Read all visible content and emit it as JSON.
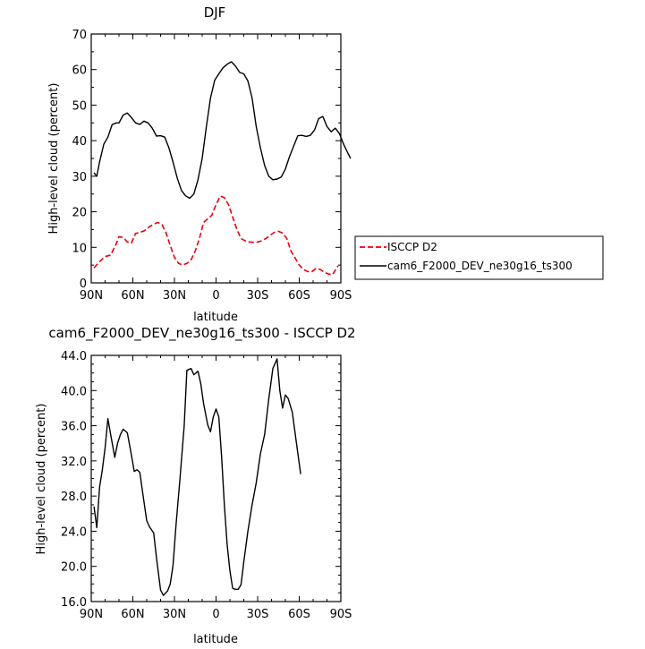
{
  "chart_data": [
    {
      "type": "line",
      "title": "DJF",
      "xlabel": "latitude",
      "ylabel": "High-level cloud (percent)",
      "xlim": [
        90,
        -90
      ],
      "ylim": [
        0,
        70
      ],
      "x_ticks": [
        {
          "value": 90,
          "label": "90N"
        },
        {
          "value": 60,
          "label": "60N"
        },
        {
          "value": 30,
          "label": "30N"
        },
        {
          "value": 0,
          "label": "0"
        },
        {
          "value": -30,
          "label": "30S"
        },
        {
          "value": -60,
          "label": "60S"
        },
        {
          "value": -90,
          "label": "90S"
        }
      ],
      "y_ticks": [
        {
          "value": 0,
          "label": "0"
        },
        {
          "value": 10,
          "label": "10"
        },
        {
          "value": 20,
          "label": "20"
        },
        {
          "value": 30,
          "label": "30"
        },
        {
          "value": 40,
          "label": "40"
        },
        {
          "value": 50,
          "label": "50"
        },
        {
          "value": 60,
          "label": "60"
        },
        {
          "value": 70,
          "label": "70"
        }
      ],
      "grid": false,
      "legend_position": "right",
      "series": [
        {
          "name": "ISCCP D2",
          "color": "#e8000b",
          "dash": "dashed",
          "points": [
            [
              88,
              4.2
            ],
            [
              84,
              6
            ],
            [
              80,
              7.4
            ],
            [
              76,
              7.8
            ],
            [
              72,
              11
            ],
            [
              70,
              13
            ],
            [
              67,
              12.8
            ],
            [
              64,
              11.5
            ],
            [
              61,
              11.2
            ],
            [
              58,
              13.9
            ],
            [
              55,
              14.2
            ],
            [
              52,
              14.6
            ],
            [
              48,
              15.8
            ],
            [
              45,
              16.5
            ],
            [
              42,
              17
            ],
            [
              39,
              16.4
            ],
            [
              36,
              14
            ],
            [
              33,
              10.5
            ],
            [
              30,
              7.2
            ],
            [
              27,
              5.5
            ],
            [
              24,
              5
            ],
            [
              21,
              5.5
            ],
            [
              18,
              6.5
            ],
            [
              15,
              9
            ],
            [
              12,
              12.5
            ],
            [
              9,
              17
            ],
            [
              6,
              18
            ],
            [
              3,
              19
            ],
            [
              0,
              22
            ],
            [
              -3,
              24.4
            ],
            [
              -6,
              24
            ],
            [
              -9,
              22
            ],
            [
              -12,
              18.5
            ],
            [
              -15,
              15
            ],
            [
              -18,
              12.5
            ],
            [
              -21,
              11.8
            ],
            [
              -24,
              11.5
            ],
            [
              -27,
              11.4
            ],
            [
              -30,
              11.5
            ],
            [
              -33,
              11.8
            ],
            [
              -36,
              12.5
            ],
            [
              -39,
              13.4
            ],
            [
              -42,
              14.2
            ],
            [
              -45,
              14.5
            ],
            [
              -48,
              14
            ],
            [
              -51,
              12.5
            ],
            [
              -54,
              9
            ],
            [
              -57,
              7
            ],
            [
              -60,
              5
            ],
            [
              -63,
              3.8
            ],
            [
              -66,
              3.2
            ],
            [
              -69,
              3.1
            ],
            [
              -72,
              4
            ],
            [
              -75,
              3.8
            ],
            [
              -78,
              3
            ],
            [
              -81,
              2.5
            ],
            [
              -84,
              2.3
            ],
            [
              -88,
              4.8
            ]
          ]
        },
        {
          "name": "cam6_F2000_DEV_ne30g16_ts300",
          "color": "#000000",
          "dash": "solid",
          "points": [
            [
              88,
              31
            ],
            [
              86,
              30
            ],
            [
              84,
              34
            ],
            [
              81,
              39
            ],
            [
              78,
              41
            ],
            [
              75,
              44.5
            ],
            [
              72,
              45
            ],
            [
              70,
              45
            ],
            [
              67,
              47.2
            ],
            [
              64,
              47.8
            ],
            [
              61,
              46.5
            ],
            [
              58,
              45
            ],
            [
              55,
              44.6
            ],
            [
              52,
              45.5
            ],
            [
              49,
              45
            ],
            [
              46,
              43.5
            ],
            [
              43,
              41.3
            ],
            [
              40,
              41.4
            ],
            [
              37,
              41
            ],
            [
              34,
              38
            ],
            [
              31,
              34
            ],
            [
              28,
              29.5
            ],
            [
              25,
              26
            ],
            [
              22,
              24.5
            ],
            [
              19,
              23.8
            ],
            [
              16,
              25
            ],
            [
              13,
              29
            ],
            [
              10,
              35
            ],
            [
              7,
              44
            ],
            [
              4,
              52
            ],
            [
              1,
              57
            ],
            [
              -2,
              58.8
            ],
            [
              -5,
              60.5
            ],
            [
              -8,
              61.5
            ],
            [
              -11,
              62.2
            ],
            [
              -14,
              61
            ],
            [
              -17,
              59.2
            ],
            [
              -20,
              58.8
            ],
            [
              -23,
              56.8
            ],
            [
              -26,
              52
            ],
            [
              -29,
              44
            ],
            [
              -32,
              38
            ],
            [
              -35,
              33
            ],
            [
              -38,
              30
            ],
            [
              -41,
              29
            ],
            [
              -44,
              29.2
            ],
            [
              -47,
              29.8
            ],
            [
              -50,
              32
            ],
            [
              -53,
              35.5
            ],
            [
              -56,
              38.5
            ],
            [
              -59,
              41.4
            ],
            [
              -62,
              41.5
            ],
            [
              -65,
              41.2
            ],
            [
              -68,
              41.5
            ],
            [
              -71,
              43
            ],
            [
              -74,
              46.2
            ],
            [
              -77,
              46.8
            ],
            [
              -80,
              44
            ],
            [
              -83,
              42.5
            ],
            [
              -86,
              43.5
            ],
            [
              -89,
              42
            ],
            [
              -92,
              39
            ],
            [
              -95,
              36.5
            ],
            [
              -97,
              35
            ]
          ]
        }
      ]
    },
    {
      "type": "line",
      "title": "cam6_F2000_DEV_ne30g16_ts300 - ISCCP D2",
      "xlabel": "latitude",
      "ylabel": "High-level cloud (percent)",
      "xlim": [
        90,
        -90
      ],
      "ylim": [
        16,
        44
      ],
      "x_ticks": [
        {
          "value": 90,
          "label": "90N"
        },
        {
          "value": 60,
          "label": "60N"
        },
        {
          "value": 30,
          "label": "30N"
        },
        {
          "value": 0,
          "label": "0"
        },
        {
          "value": -30,
          "label": "30S"
        },
        {
          "value": -60,
          "label": "60S"
        },
        {
          "value": -90,
          "label": "90S"
        }
      ],
      "y_ticks": [
        {
          "value": 16,
          "label": "16.0"
        },
        {
          "value": 20,
          "label": "20.0"
        },
        {
          "value": 24,
          "label": "24.0"
        },
        {
          "value": 28,
          "label": "28.0"
        },
        {
          "value": 32,
          "label": "32.0"
        },
        {
          "value": 36,
          "label": "36.0"
        },
        {
          "value": 40,
          "label": "40.0"
        },
        {
          "value": 44,
          "label": "44.0"
        }
      ],
      "grid": false,
      "series": [
        {
          "color": "#000000",
          "dash": "solid",
          "points": [
            [
              88,
              26.8
            ],
            [
              86,
              24.4
            ],
            [
              84,
              29
            ],
            [
              82,
              31
            ],
            [
              80,
              33.5
            ],
            [
              78,
              36.8
            ],
            [
              76,
              35
            ],
            [
              73,
              32.4
            ],
            [
              71,
              34
            ],
            [
              69,
              35
            ],
            [
              67,
              35.6
            ],
            [
              64,
              35.2
            ],
            [
              62,
              33.5
            ],
            [
              59,
              30.8
            ],
            [
              57,
              31
            ],
            [
              55,
              30.7
            ],
            [
              53,
              28.5
            ],
            [
              50,
              25.2
            ],
            [
              48,
              24.5
            ],
            [
              45,
              23.8
            ],
            [
              43,
              21
            ],
            [
              40,
              17.3
            ],
            [
              38,
              16.7
            ],
            [
              35,
              17.2
            ],
            [
              33,
              18
            ],
            [
              31,
              20.1
            ],
            [
              29,
              24.5
            ],
            [
              26,
              30
            ],
            [
              23,
              36
            ],
            [
              21,
              42.3
            ],
            [
              18,
              42.5
            ],
            [
              16,
              41.8
            ],
            [
              13,
              42.2
            ],
            [
              11,
              40.8
            ],
            [
              9,
              38.5
            ],
            [
              6,
              36.1
            ],
            [
              4,
              35.3
            ],
            [
              2,
              37
            ],
            [
              0,
              37.9
            ],
            [
              -2,
              37
            ],
            [
              -4,
              32.5
            ],
            [
              -6,
              27
            ],
            [
              -8,
              22.5
            ],
            [
              -10,
              19.5
            ],
            [
              -12,
              17.5
            ],
            [
              -14,
              17.4
            ],
            [
              -16,
              17.4
            ],
            [
              -18,
              17.9
            ],
            [
              -20,
              20.5
            ],
            [
              -23,
              24
            ],
            [
              -26,
              27
            ],
            [
              -29,
              29.5
            ],
            [
              -32,
              32.8
            ],
            [
              -35,
              35
            ],
            [
              -38,
              39
            ],
            [
              -41,
              42.5
            ],
            [
              -44,
              43.6
            ],
            [
              -46,
              40
            ],
            [
              -48,
              38
            ],
            [
              -50,
              39.5
            ],
            [
              -52,
              39.1
            ],
            [
              -55,
              37.5
            ],
            [
              -58,
              34
            ],
            [
              -61,
              30.5
            ]
          ]
        }
      ]
    }
  ]
}
